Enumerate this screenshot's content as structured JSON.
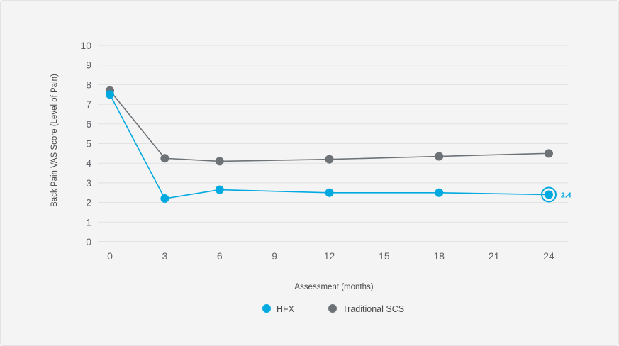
{
  "chart_data": {
    "type": "line",
    "title": "",
    "xlabel": "Assessment (months)",
    "ylabel": "Back Pain VAS Score (Level of Pain)",
    "x_ticks": [
      0,
      3,
      6,
      9,
      12,
      15,
      18,
      21,
      24
    ],
    "y_ticks": [
      0,
      1,
      2,
      3,
      4,
      5,
      6,
      7,
      8,
      9,
      10
    ],
    "xlim": [
      0,
      24
    ],
    "ylim": [
      0,
      10
    ],
    "grid": "horizontal",
    "legend_position": "bottom-center",
    "series": [
      {
        "name": "HFX",
        "color": "#00a9e0",
        "x": [
          0,
          3,
          6,
          12,
          18,
          24
        ],
        "y": [
          7.5,
          2.2,
          2.65,
          2.5,
          2.5,
          2.4
        ],
        "highlight_last": true,
        "last_label": "2.4"
      },
      {
        "name": "Traditional SCS",
        "color": "#6d7277",
        "x": [
          0,
          3,
          6,
          12,
          18,
          24
        ],
        "y": [
          7.7,
          4.25,
          4.1,
          4.2,
          4.35,
          4.5
        ]
      }
    ]
  }
}
